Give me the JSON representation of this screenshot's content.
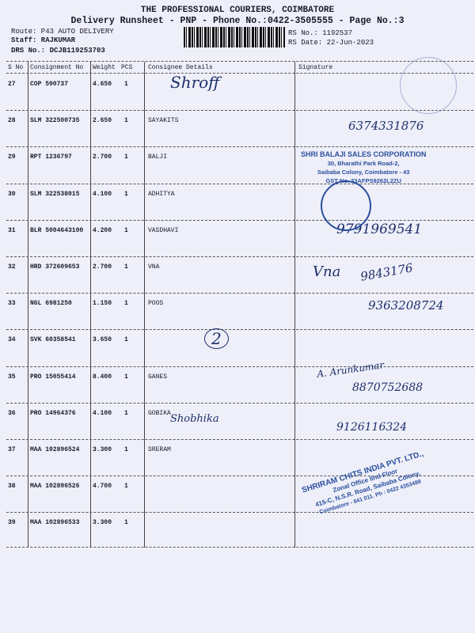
{
  "header": {
    "company": "THE PROFESSIONAL COURIERS, COIMBATORE",
    "subtitle": "Delivery Runsheet - PNP - Phone No.:0422-3505555 - Page No.:3",
    "route": "Route: P43 AUTO DELIVERY",
    "staff": "Staff: RAJKUMAR",
    "drs": "DRS No.: DCJB119253703",
    "rs_no": "RS No.: 1192537",
    "rs_date": "RS Date: 22-Jun-2023"
  },
  "table": {
    "columns": [
      "S No",
      "Consignment No",
      "Weight",
      "PCS",
      "Consignee Details",
      "Signature"
    ],
    "rows": [
      {
        "sno": "27",
        "cons": "COP 590737",
        "weight": "4.650",
        "pcs": "1",
        "consignee": ""
      },
      {
        "sno": "28",
        "cons": "SLM 322500735",
        "weight": "2.650",
        "pcs": "1",
        "consignee": "SAYAKITS"
      },
      {
        "sno": "29",
        "cons": "RPT 1236797",
        "weight": "2.700",
        "pcs": "1",
        "consignee": "BALJI"
      },
      {
        "sno": "30",
        "cons": "SLM 322538015",
        "weight": "4.100",
        "pcs": "1",
        "consignee": "ADHITYA"
      },
      {
        "sno": "31",
        "cons": "BLR 5004643100",
        "weight": "4.200",
        "pcs": "1",
        "consignee": "VASDHAVI"
      },
      {
        "sno": "32",
        "cons": "HRD 372609653",
        "weight": "2.700",
        "pcs": "1",
        "consignee": "VNA"
      },
      {
        "sno": "33",
        "cons": "NGL 6981250",
        "weight": "1.150",
        "pcs": "1",
        "consignee": "POOS"
      },
      {
        "sno": "34",
        "cons": "SVK 60358541",
        "weight": "3.650",
        "pcs": "1",
        "consignee": ""
      },
      {
        "sno": "35",
        "cons": "PRO 15055414",
        "weight": "8.400",
        "pcs": "1",
        "consignee": "GANES"
      },
      {
        "sno": "36",
        "cons": "PRO 14964376",
        "weight": "4.100",
        "pcs": "1",
        "consignee": "GOBIKA"
      },
      {
        "sno": "37",
        "cons": "MAA 102896524",
        "weight": "3.300",
        "pcs": "1",
        "consignee": "SRERAM"
      },
      {
        "sno": "38",
        "cons": "MAA 102896526",
        "weight": "4.700",
        "pcs": "1",
        "consignee": ""
      },
      {
        "sno": "39",
        "cons": "MAA 102896533",
        "weight": "3.300",
        "pcs": "1",
        "consignee": ""
      }
    ]
  },
  "handwriting": {
    "shroff": "Shroff",
    "phone28": "6374331876",
    "phone31": "9791969541",
    "vna": "Vna",
    "phone32": "9843176",
    "phone33": "9363208724",
    "circle34": "2",
    "name35": "A. Arunkumar",
    "phone35": "8870752688",
    "shobhika": "Shobhika",
    "phone36": "9126116324"
  },
  "stamps": {
    "balaji": [
      "SHRI BALAJI SALES CORPORATION",
      "30, Bharathi Park Road-2,",
      "Saibaba Colony, Coimbatore - 43",
      "GST No. 33AFPS9262L2ZU"
    ],
    "shriram": [
      "SHRIRAM CHITS INDIA PVT. LTD.,",
      "Zonal Office IInd Floor",
      "415-C, N.S.R. Road, Saibaba Colony,",
      "Coimbatore - 641 011. Ph : 0422 4353488"
    ]
  }
}
